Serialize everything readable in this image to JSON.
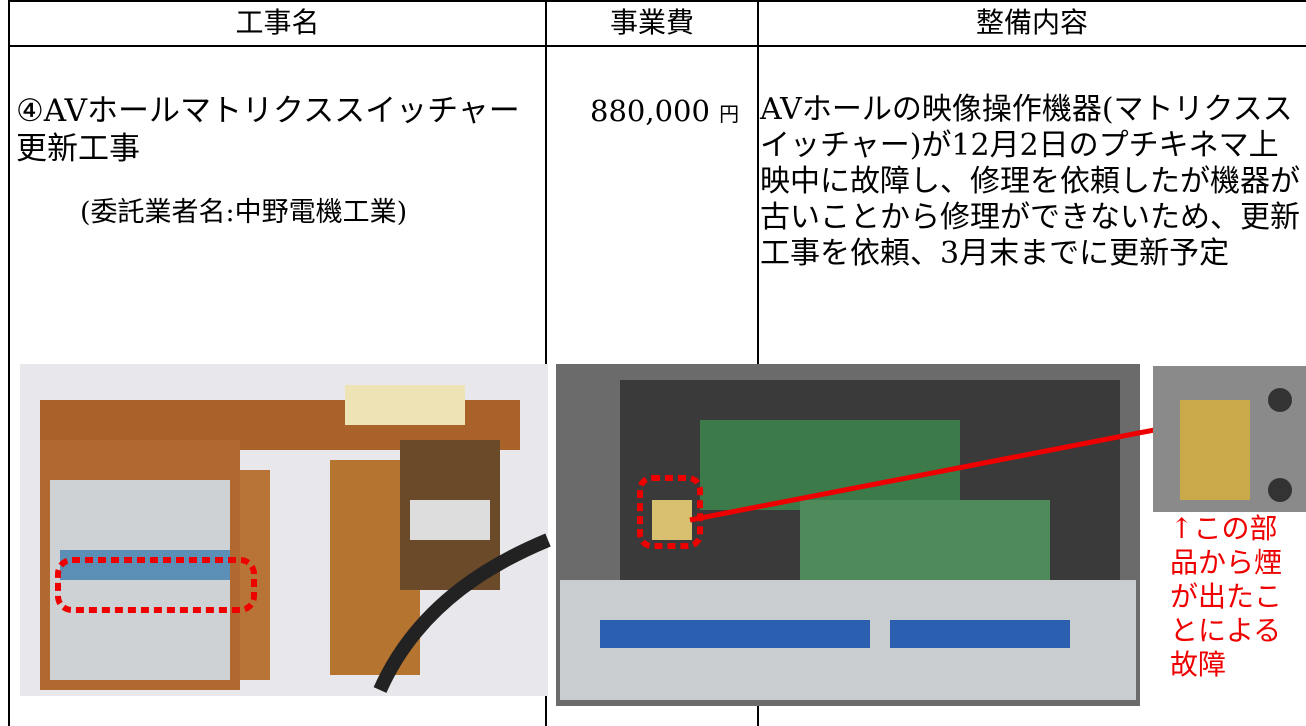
{
  "table": {
    "headers": [
      "工事名",
      "事業費",
      "整備内容"
    ],
    "rows": [
      {
        "name": "④AVホールマトリクススイッチャー更新工事",
        "contractor": "(委託業者名:中野電機工業)",
        "cost": "880,000",
        "cost_unit": "円",
        "description": "AVホールの映像操作機器(マトリクススイッチャー)が12月2日のプチキネマ上映中に故障し、修理を依頼したが機器が古いことから修理ができないため、更新工事を依頼、3月末までに更新予定"
      }
    ]
  },
  "photo_caption": "↑この部品から煙が出たことによる故障"
}
